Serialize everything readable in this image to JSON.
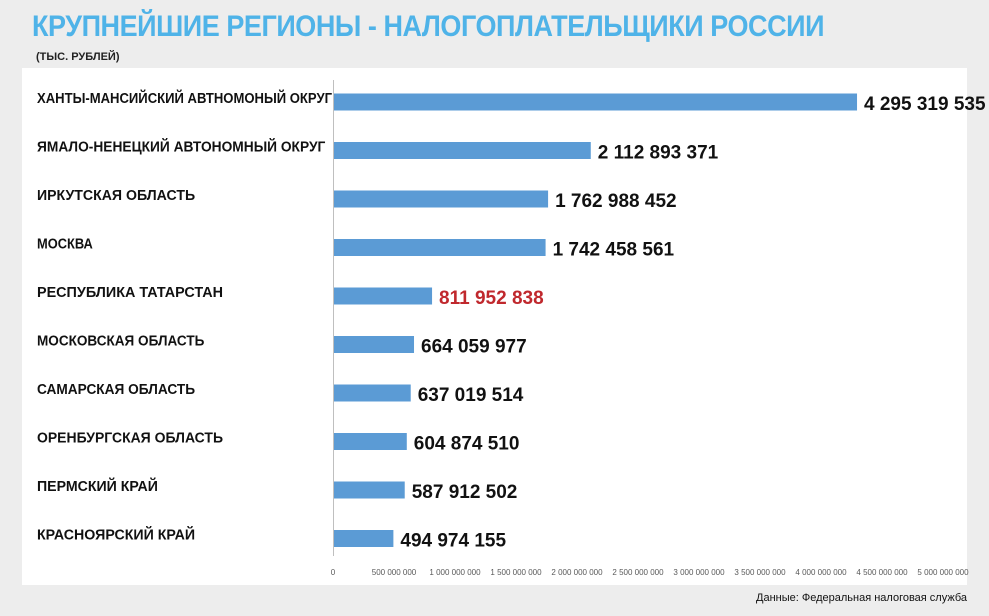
{
  "header": {
    "title": "КРУПНЕЙШИЕ РЕГИОНЫ - НАЛОГОПЛАТЕЛЬЩИКИ РОССИИ",
    "subtitle": "(ТЫС. РУБЛЕЙ)"
  },
  "footer": {
    "source": "Данные: Федеральная налоговая служба"
  },
  "colors": {
    "bar": "#5b9bd5",
    "title": "#4fb3e8",
    "highlight_label": "#c0282d",
    "label": "#111111",
    "background": "#ededed"
  },
  "chart_data": {
    "type": "bar",
    "orientation": "horizontal",
    "title": "КРУПНЕЙШИЕ РЕГИОНЫ - НАЛОГОПЛАТЕЛЬЩИКИ РОССИИ",
    "subtitle": "(ТЫС. РУБЛЕЙ)",
    "xlabel": "",
    "ylabel": "",
    "xlim": [
      0,
      5000000000
    ],
    "grid": false,
    "categories": [
      "ХАНТЫ-МАНСИЙСКИЙ АВТНОМОНЫЙ ОКРУГ",
      "ЯМАЛО-НЕНЕЦКИЙ АВТОНОМНЫЙ ОКРУГ",
      "ИРКУТСКАЯ ОБЛАСТЬ",
      "МОСКВА",
      "РЕСПУБЛИКА ТАТАРСТАН",
      "МОСКОВСКАЯ ОБЛАСТЬ",
      "САМАРСКАЯ ОБЛАСТЬ",
      "ОРЕНБУРГСКАЯ ОБЛАСТЬ",
      "ПЕРМСКИЙ КРАЙ",
      "КРАСНОЯРСКИЙ КРАЙ"
    ],
    "values": [
      4295319535,
      2112893371,
      1762988452,
      1742458561,
      811952838,
      664059977,
      637019514,
      604874510,
      587912502,
      494974155
    ],
    "value_labels": [
      "4 295 319 535",
      "2 112 893 371",
      "1 762 988 452",
      "1 742 458 561",
      "811 952 838",
      "664 059 977",
      "637 019 514",
      "604 874 510",
      "587 912 502",
      "494 974 155"
    ],
    "highlighted_index": 4,
    "tick_values": [
      0,
      500000000,
      1000000000,
      1500000000,
      2000000000,
      2500000000,
      3000000000,
      3500000000,
      4000000000,
      4500000000,
      5000000000
    ],
    "tick_labels": [
      "0",
      "500 000 000",
      "1 000 000 000",
      "1 500 000 000",
      "2 000 000 000",
      "2 500 000 000",
      "3 000 000 000",
      "3 500 000 000",
      "4 000 000 000",
      "4 500 000 000",
      "5 000 000 000"
    ]
  }
}
